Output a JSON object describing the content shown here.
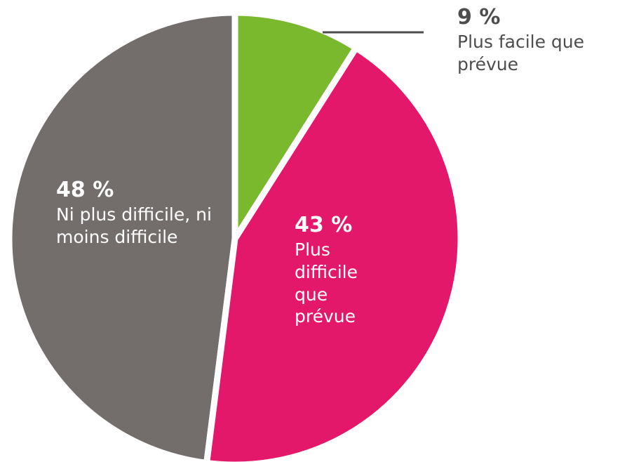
{
  "chart_data": {
    "type": "pie",
    "categories": [
      "Plus facile que prévue",
      "Plus difficile que prévue",
      "Ni plus difficile, ni moins difficile"
    ],
    "values": [
      9,
      43,
      48
    ],
    "value_labels": [
      "9 %",
      "43 %",
      "48 %"
    ],
    "colors": [
      "#7ab82e",
      "#e3186a",
      "#736e6c"
    ]
  }
}
